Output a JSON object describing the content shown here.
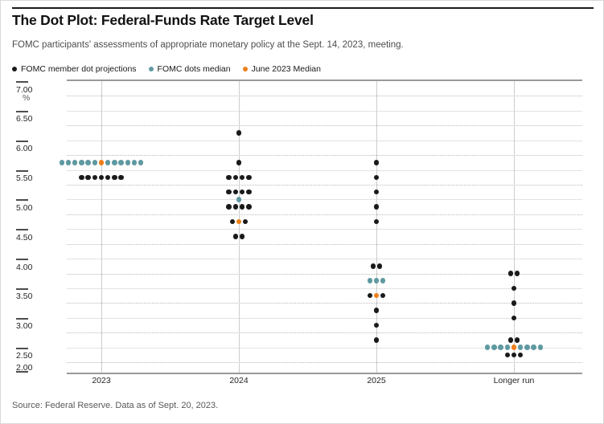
{
  "header": {
    "subtitle": "FOMC participants' assessments of appropriate monetary policy at the Sept. 14, 2023, meeting."
  },
  "legend": {
    "items": [
      {
        "label": "FOMC member dot projections",
        "color": "#1a1a1a"
      },
      {
        "label": "FOMC dots median",
        "color": "#5f99a1"
      },
      {
        "label": "June 2023 Median",
        "color": "#ef7f1a"
      }
    ]
  },
  "footer": {
    "source": "Source: Federal Reserve. Data as of Sept. 20, 2023."
  },
  "chart_data": {
    "type": "scatter",
    "subtype": "fed-dot-plot",
    "title": "The Dot Plot: Federal-Funds Rate Target Level",
    "unit_label": "%",
    "ylim": [
      2.0,
      7.0
    ],
    "grid": {
      "solid_step": 0.5,
      "dotted_step": 0.25,
      "grid_on": true
    },
    "yticks": [
      {
        "label": "7.00",
        "value": 7.0
      },
      {
        "label": "6.50",
        "value": 6.5
      },
      {
        "label": "6.00",
        "value": 6.0
      },
      {
        "label": "5.50",
        "value": 5.5
      },
      {
        "label": "5.00",
        "value": 5.0
      },
      {
        "label": "4.50",
        "value": 4.5
      },
      {
        "label": "4.00",
        "value": 4.0
      },
      {
        "label": "3.50",
        "value": 3.5
      },
      {
        "label": "3.00",
        "value": 3.0
      },
      {
        "label": "2.50",
        "value": 2.5
      },
      {
        "label": "2.00",
        "value": 2.0
      }
    ],
    "categories": [
      "2023",
      "2024",
      "2025",
      "Longer run"
    ],
    "dot_colors": {
      "k": "#1a1a1a",
      "t": "#5f99a1",
      "o": "#ef7f1a"
    },
    "dot_legend": {
      "k": "FOMC member dot projection",
      "t": "FOMC dots median",
      "o": "June 2023 median"
    },
    "medians": {
      "2023": 5.625,
      "2024": 5.0,
      "2025": 3.625,
      "Longer run": 2.5
    },
    "columns": [
      {
        "category": "2023",
        "rows": [
          {
            "rate": 5.625,
            "dots": [
              "t",
              "t",
              "t",
              "t",
              "t",
              "t",
              "o",
              "t",
              "t",
              "t",
              "t",
              "t",
              "t"
            ]
          },
          {
            "rate": 5.375,
            "dots": [
              "k",
              "k",
              "k",
              "k",
              "k",
              "k",
              "k"
            ]
          }
        ]
      },
      {
        "category": "2024",
        "rows": [
          {
            "rate": 6.125,
            "dots": [
              "k"
            ]
          },
          {
            "rate": 5.625,
            "dots": [
              "k"
            ]
          },
          {
            "rate": 5.375,
            "dots": [
              "k",
              "k",
              "k",
              "k"
            ]
          },
          {
            "rate": 5.125,
            "dots": [
              "k",
              "k",
              "k",
              "k"
            ]
          },
          {
            "rate": 5.0,
            "dots": [
              "t"
            ]
          },
          {
            "rate": 4.875,
            "dots": [
              "k",
              "k",
              "k",
              "k"
            ]
          },
          {
            "rate": 4.625,
            "dots": [
              "k",
              "o",
              "k"
            ]
          },
          {
            "rate": 4.375,
            "dots": [
              "k",
              "k"
            ]
          }
        ]
      },
      {
        "category": "2025",
        "rows": [
          {
            "rate": 5.625,
            "dots": [
              "k"
            ]
          },
          {
            "rate": 5.375,
            "dots": [
              "k"
            ]
          },
          {
            "rate": 5.125,
            "dots": [
              "k"
            ]
          },
          {
            "rate": 4.875,
            "dots": [
              "k"
            ]
          },
          {
            "rate": 4.625,
            "dots": [
              "k"
            ]
          },
          {
            "rate": 3.875,
            "dots": [
              "k",
              "k"
            ]
          },
          {
            "rate": 3.625,
            "dots": [
              "t",
              "t",
              "t"
            ]
          },
          {
            "rate": 3.375,
            "dots": [
              "k",
              "o",
              "k"
            ]
          },
          {
            "rate": 3.125,
            "dots": [
              "k"
            ]
          },
          {
            "rate": 2.875,
            "dots": [
              "k"
            ]
          },
          {
            "rate": 2.625,
            "dots": [
              "k"
            ]
          }
        ]
      },
      {
        "category": "Longer run",
        "rows": [
          {
            "rate": 3.75,
            "dots": [
              "k",
              "k"
            ]
          },
          {
            "rate": 3.5,
            "dots": [
              "k"
            ]
          },
          {
            "rate": 3.25,
            "dots": [
              "k"
            ]
          },
          {
            "rate": 3.0,
            "dots": [
              "k"
            ]
          },
          {
            "rate": 2.625,
            "dots": [
              "k",
              "k"
            ]
          },
          {
            "rate": 2.5,
            "dots": [
              "t",
              "t",
              "t",
              "t",
              "o",
              "t",
              "t",
              "t",
              "t"
            ]
          },
          {
            "rate": 2.375,
            "dots": [
              "k",
              "k",
              "k"
            ]
          }
        ]
      }
    ],
    "source": "Source: Federal Reserve. Data as of Sept. 20, 2023."
  }
}
